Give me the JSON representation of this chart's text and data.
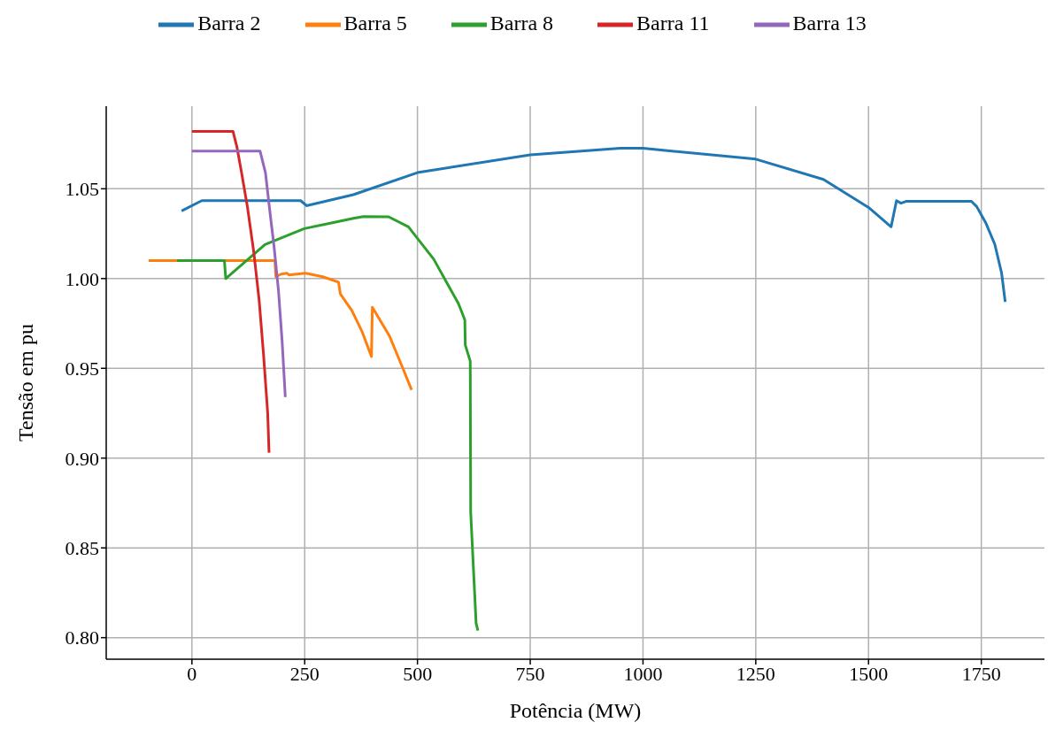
{
  "chart_data": {
    "type": "line",
    "xlabel": "Potência (MW)",
    "ylabel": "Tensão em pu",
    "xlim": [
      -190,
      1890
    ],
    "xticks": [
      0,
      250,
      500,
      750,
      1000,
      1250,
      1500,
      1750
    ],
    "ylim": [
      0.788,
      1.096
    ],
    "yticks": [
      {
        "value": 0.8,
        "label": "0.80"
      },
      {
        "value": 0.85,
        "label": "0.85"
      },
      {
        "value": 0.9,
        "label": "0.90"
      },
      {
        "value": 0.95,
        "label": "0.95"
      },
      {
        "value": 1.0,
        "label": "1.00"
      },
      {
        "value": 1.05,
        "label": "1.05"
      }
    ],
    "grid": true,
    "legend": "top",
    "marker": "none",
    "line_style": "solid",
    "series": [
      {
        "name": "Barra 2",
        "color": "#1f77b4",
        "x": [
          -23,
          22,
          241,
          254,
          358,
          500,
          750,
          950,
          1000,
          1250,
          1400,
          1500,
          1550,
          1562,
          1572,
          1583,
          1728,
          1740,
          1760,
          1780,
          1795,
          1803
        ],
        "values": [
          1.0377,
          1.0434,
          1.0434,
          1.0406,
          1.0467,
          1.059,
          1.0689,
          1.0726,
          1.0726,
          1.0665,
          1.0552,
          1.0396,
          1.0288,
          1.0434,
          1.042,
          1.043,
          1.043,
          1.04,
          1.031,
          1.019,
          1.003,
          0.987
        ]
      },
      {
        "name": "Barra 5",
        "color": "#ff7f0e",
        "x": [
          -96,
          184,
          186,
          198,
          211,
          215,
          252,
          290,
          325,
          329,
          355,
          378,
          398,
          400,
          438,
          466,
          487
        ],
        "values": [
          1.01,
          1.01,
          1.001,
          1.0025,
          1.003,
          1.002,
          1.003,
          1.001,
          0.998,
          0.9915,
          0.982,
          0.97,
          0.9566,
          0.984,
          0.968,
          0.951,
          0.938
        ]
      },
      {
        "name": "Barra 8",
        "color": "#2ca02c",
        "x": [
          -33,
          72,
          75,
          162,
          249,
          358,
          380,
          436,
          480,
          536,
          591,
          605,
          606,
          617,
          618,
          630,
          634
        ],
        "values": [
          1.01,
          1.01,
          1.0,
          1.0189,
          1.0278,
          1.0335,
          1.0345,
          1.0344,
          1.0288,
          1.0108,
          0.986,
          0.977,
          0.963,
          0.954,
          0.87,
          0.808,
          0.804
        ]
      },
      {
        "name": "Barra 11",
        "color": "#d62728",
        "x": [
          0,
          91,
          100,
          110,
          123,
          137,
          149,
          159,
          168,
          171
        ],
        "values": [
          1.082,
          1.082,
          1.073,
          1.059,
          1.04,
          1.015,
          0.988,
          0.957,
          0.925,
          0.903
        ]
      },
      {
        "name": "Barra 13",
        "color": "#9467bd",
        "x": [
          0,
          151,
          163,
          173,
          182,
          192,
          200,
          207
        ],
        "values": [
          1.071,
          1.071,
          1.059,
          1.037,
          1.018,
          0.993,
          0.965,
          0.934
        ]
      }
    ]
  }
}
